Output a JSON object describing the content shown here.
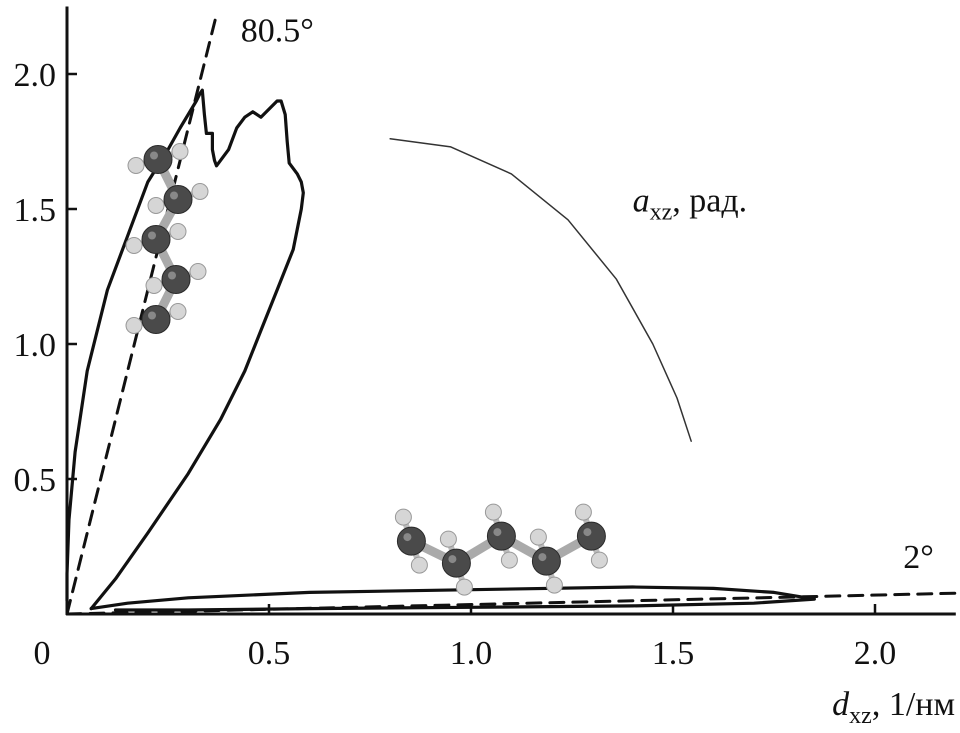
{
  "chart_data": {
    "type": "line",
    "title": "",
    "xlabel": {
      "base": "d",
      "sub": "xz",
      "rest": ", 1/нм"
    },
    "ylabel": "",
    "xlim": [
      0,
      2.2
    ],
    "ylim": [
      0,
      2.25
    ],
    "x_ticks": [
      0,
      0.5,
      1.0,
      1.5,
      2.0
    ],
    "x_tick_labels": [
      "0",
      "0.5",
      "1.0",
      "1.5",
      "2.0"
    ],
    "y_ticks": [
      0.5,
      1.0,
      1.5,
      2.0
    ],
    "y_tick_labels": [
      "0.5",
      "1.0",
      "1.5",
      "2.0"
    ],
    "grid": false,
    "legend": "none",
    "annotations": [
      {
        "text": "80.5°",
        "x": 0.43,
        "y": 2.12
      },
      {
        "text": "2°",
        "x": 2.07,
        "y": 0.17
      },
      {
        "text": {
          "base": "a",
          "sub": "xz",
          "rest": ", рад."
        },
        "x": 1.4,
        "y": 1.49
      }
    ],
    "series": [
      {
        "style": "dashed",
        "x": [
          0.0,
          0.37
        ],
        "y": [
          0.0,
          2.22
        ]
      },
      {
        "style": "dashed",
        "x": [
          0.0,
          2.2
        ],
        "y": [
          0.0,
          0.077
        ]
      },
      {
        "style": "solid",
        "x": [
          0.0,
          0.0,
          0.005,
          0.02,
          0.05,
          0.1,
          0.15,
          0.2,
          0.25,
          0.28,
          0.32,
          0.33,
          0.335,
          0.34,
          0.345,
          0.36,
          0.36,
          0.365,
          0.37,
          0.38,
          0.4,
          0.42,
          0.44,
          0.46,
          0.48,
          0.5,
          0.52,
          0.53,
          0.54,
          0.545,
          0.55,
          0.57,
          0.58,
          0.585,
          0.58,
          0.56,
          0.52,
          0.48,
          0.44,
          0.38,
          0.3,
          0.2,
          0.12,
          0.06
        ],
        "y": [
          0.05,
          0.15,
          0.35,
          0.6,
          0.9,
          1.2,
          1.4,
          1.6,
          1.72,
          1.8,
          1.9,
          1.93,
          1.94,
          1.85,
          1.78,
          1.78,
          1.72,
          1.68,
          1.66,
          1.68,
          1.72,
          1.8,
          1.84,
          1.86,
          1.84,
          1.87,
          1.9,
          1.9,
          1.85,
          1.75,
          1.67,
          1.63,
          1.6,
          1.56,
          1.5,
          1.35,
          1.2,
          1.05,
          0.9,
          0.72,
          0.52,
          0.3,
          0.13,
          0.02
        ]
      },
      {
        "style": "solid",
        "x": [
          0.06,
          0.15,
          0.3,
          0.6,
          1.0,
          1.4,
          1.6,
          1.75,
          1.85,
          1.7,
          1.4,
          1.0,
          0.6,
          0.3,
          0.12
        ],
        "y": [
          0.02,
          0.04,
          0.06,
          0.08,
          0.09,
          0.1,
          0.095,
          0.08,
          0.055,
          0.04,
          0.03,
          0.025,
          0.02,
          0.015,
          0.015
        ]
      },
      {
        "style": "thin-arc",
        "x": [
          0.8,
          0.95,
          1.1,
          1.24,
          1.36,
          1.45,
          1.51,
          1.545
        ],
        "y": [
          1.76,
          1.73,
          1.63,
          1.46,
          1.24,
          1.0,
          0.8,
          0.64
        ]
      }
    ],
    "molecules": [
      {
        "orientation": "vertical",
        "x": 0.25,
        "y": 1.35
      },
      {
        "orientation": "horizontal",
        "x": 1.1,
        "y": 0.27
      }
    ]
  }
}
